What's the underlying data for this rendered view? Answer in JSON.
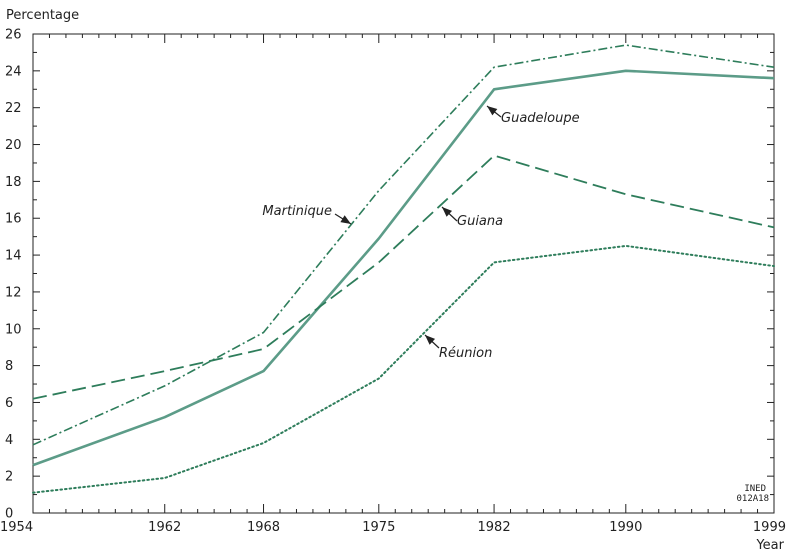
{
  "colors": {
    "axis": "#222222",
    "series_color": "#2e7d5b",
    "guadeloupe": "#5c9c88",
    "background": "#ffffff"
  },
  "chart_data": {
    "type": "line",
    "title": "",
    "ylabel": "Percentage",
    "xlabel": "Year",
    "x": [
      1954,
      1962,
      1968,
      1975,
      1982,
      1990,
      1999
    ],
    "xlim": [
      1954,
      1999
    ],
    "ylim": [
      0,
      26
    ],
    "x_ticks": [
      1954,
      1962,
      1968,
      1975,
      1982,
      1990,
      1999
    ],
    "y_ticks": [
      0,
      2,
      4,
      6,
      8,
      10,
      12,
      14,
      16,
      18,
      20,
      22,
      24,
      26
    ],
    "grid": false,
    "legend": "none",
    "series": [
      {
        "name": "Martinique",
        "style": "dash-dot",
        "values": [
          3.7,
          6.9,
          9.8,
          17.5,
          24.2,
          25.4,
          24.2
        ]
      },
      {
        "name": "Guadeloupe",
        "style": "solid",
        "values": [
          2.6,
          5.2,
          7.7,
          14.9,
          23.0,
          24.0,
          23.6
        ]
      },
      {
        "name": "Guiana",
        "style": "dashed",
        "values": [
          6.2,
          7.7,
          8.9,
          13.6,
          19.4,
          17.3,
          15.5
        ]
      },
      {
        "name": "Réunion",
        "style": "dotted",
        "values": [
          1.1,
          1.9,
          3.8,
          7.3,
          13.6,
          14.5,
          13.4
        ]
      }
    ],
    "annotations": [
      {
        "series": "Martinique",
        "text": "Martinique"
      },
      {
        "series": "Guadeloupe",
        "text": "Guadeloupe"
      },
      {
        "series": "Guiana",
        "text": "Guiana"
      },
      {
        "series": "Réunion",
        "text": "Réunion"
      }
    ],
    "credit": [
      "INED",
      "012A18"
    ]
  }
}
